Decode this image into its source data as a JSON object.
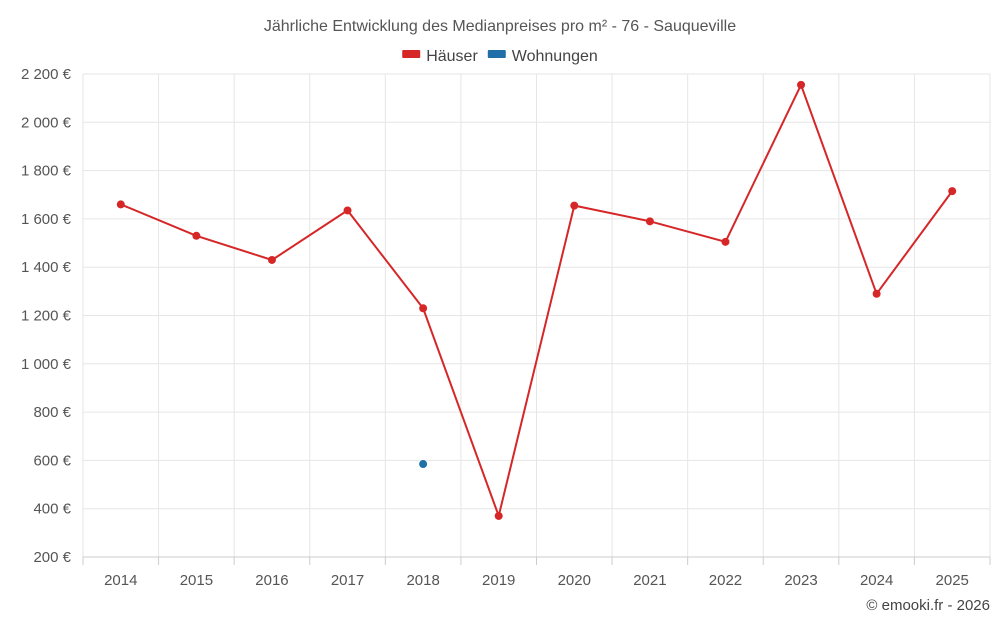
{
  "chart_data": {
    "type": "line",
    "title": "Jährliche Entwicklung des Medianpreises pro m² - 76 - Sauqueville",
    "categories": [
      "2014",
      "2015",
      "2016",
      "2017",
      "2018",
      "2019",
      "2020",
      "2021",
      "2022",
      "2023",
      "2024",
      "2025"
    ],
    "series": [
      {
        "name": "Häuser",
        "color": "#d62728",
        "values": [
          1660,
          1530,
          1430,
          1635,
          1230,
          370,
          1655,
          1590,
          1505,
          2155,
          1290,
          1715
        ]
      },
      {
        "name": "Wohnungen",
        "color": "#1f6fa8",
        "values": [
          null,
          null,
          null,
          null,
          585,
          null,
          null,
          null,
          null,
          null,
          null,
          null
        ]
      }
    ],
    "ylim": [
      200,
      2200
    ],
    "yticks": [
      200,
      400,
      600,
      800,
      1000,
      1200,
      1400,
      1600,
      1800,
      2000,
      2200
    ],
    "ytick_labels": [
      "200 €",
      "400 €",
      "600 €",
      "800 €",
      "1 000 €",
      "1 200 €",
      "1 400 €",
      "1 600 €",
      "1 800 €",
      "2 000 €",
      "2 200 €"
    ],
    "xlabel": "",
    "ylabel": "",
    "grid": true,
    "legend_position": "top-center"
  },
  "credit": "© emooki.fr - 2026"
}
